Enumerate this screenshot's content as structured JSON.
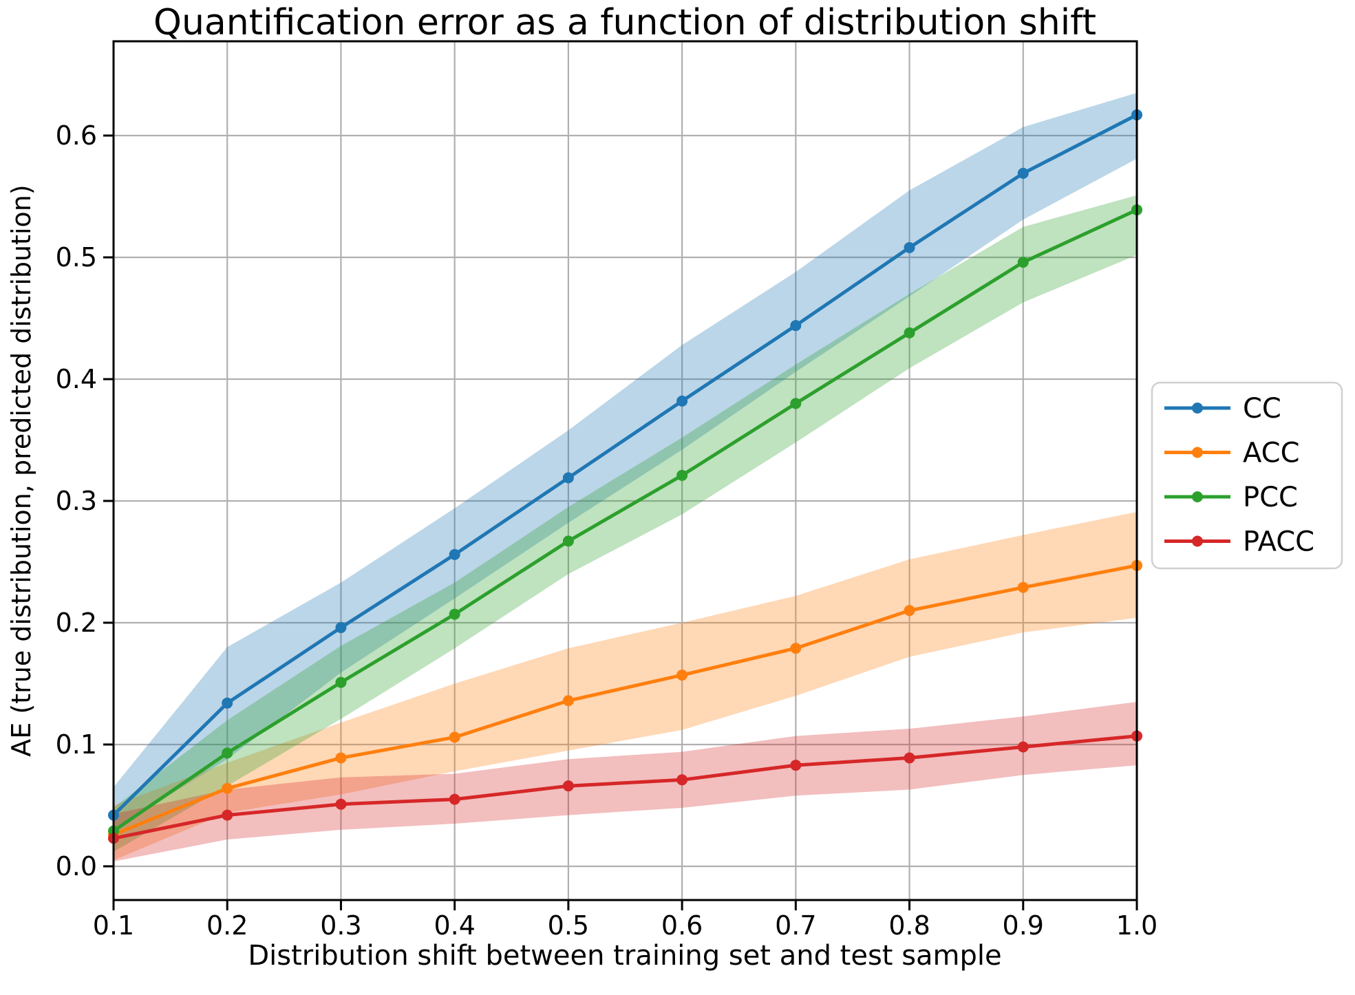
{
  "chart_data": {
    "type": "line",
    "title": "Quantification error as a function of distribution shift",
    "xlabel": "Distribution shift between training set and test sample",
    "ylabel": "AE (true distribution, predicted distribution)",
    "x": [
      0.1,
      0.2,
      0.3,
      0.4,
      0.5,
      0.6,
      0.7,
      0.8,
      0.9,
      1.0
    ],
    "xtick_labels": [
      "0.1",
      "0.2",
      "0.3",
      "0.4",
      "0.5",
      "0.6",
      "0.7",
      "0.8",
      "0.9",
      "1.0"
    ],
    "ytick_labels": [
      "0.0",
      "0.1",
      "0.2",
      "0.3",
      "0.4",
      "0.5",
      "0.6"
    ],
    "xlim": [
      0.1,
      1.0
    ],
    "ylim": [
      -0.0277,
      0.6774
    ],
    "grid": true,
    "legend_position": "right-outside",
    "grid_color": "#b0b0b0",
    "band_opacity": 0.3,
    "series": [
      {
        "name": "CC",
        "color": "#1f77b4",
        "values": [
          0.042,
          0.134,
          0.196,
          0.256,
          0.319,
          0.382,
          0.444,
          0.508,
          0.569,
          0.617
        ],
        "band_lower": [
          0.03,
          0.088,
          0.159,
          0.22,
          0.282,
          0.342,
          0.406,
          0.468,
          0.531,
          0.581
        ],
        "band_upper": [
          0.065,
          0.18,
          0.233,
          0.294,
          0.358,
          0.428,
          0.488,
          0.555,
          0.607,
          0.635
        ]
      },
      {
        "name": "ACC",
        "color": "#ff7f0e",
        "values": [
          0.026,
          0.064,
          0.089,
          0.106,
          0.136,
          0.157,
          0.179,
          0.21,
          0.229,
          0.247
        ],
        "band_lower": [
          0.005,
          0.044,
          0.059,
          0.078,
          0.095,
          0.112,
          0.14,
          0.172,
          0.192,
          0.204
        ],
        "band_upper": [
          0.05,
          0.085,
          0.118,
          0.15,
          0.179,
          0.2,
          0.222,
          0.252,
          0.272,
          0.291
        ]
      },
      {
        "name": "PCC",
        "color": "#2ca02c",
        "values": [
          0.029,
          0.093,
          0.151,
          0.207,
          0.267,
          0.321,
          0.38,
          0.438,
          0.496,
          0.539
        ],
        "band_lower": [
          0.012,
          0.066,
          0.121,
          0.179,
          0.24,
          0.289,
          0.348,
          0.409,
          0.463,
          0.502
        ],
        "band_upper": [
          0.048,
          0.12,
          0.181,
          0.233,
          0.295,
          0.352,
          0.412,
          0.47,
          0.525,
          0.551
        ]
      },
      {
        "name": "PACC",
        "color": "#d62728",
        "values": [
          0.023,
          0.042,
          0.051,
          0.055,
          0.066,
          0.071,
          0.083,
          0.089,
          0.098,
          0.107
        ],
        "band_lower": [
          0.004,
          0.022,
          0.03,
          0.035,
          0.042,
          0.048,
          0.058,
          0.063,
          0.075,
          0.083
        ],
        "band_upper": [
          0.043,
          0.063,
          0.073,
          0.076,
          0.088,
          0.094,
          0.107,
          0.113,
          0.123,
          0.135
        ]
      }
    ]
  }
}
